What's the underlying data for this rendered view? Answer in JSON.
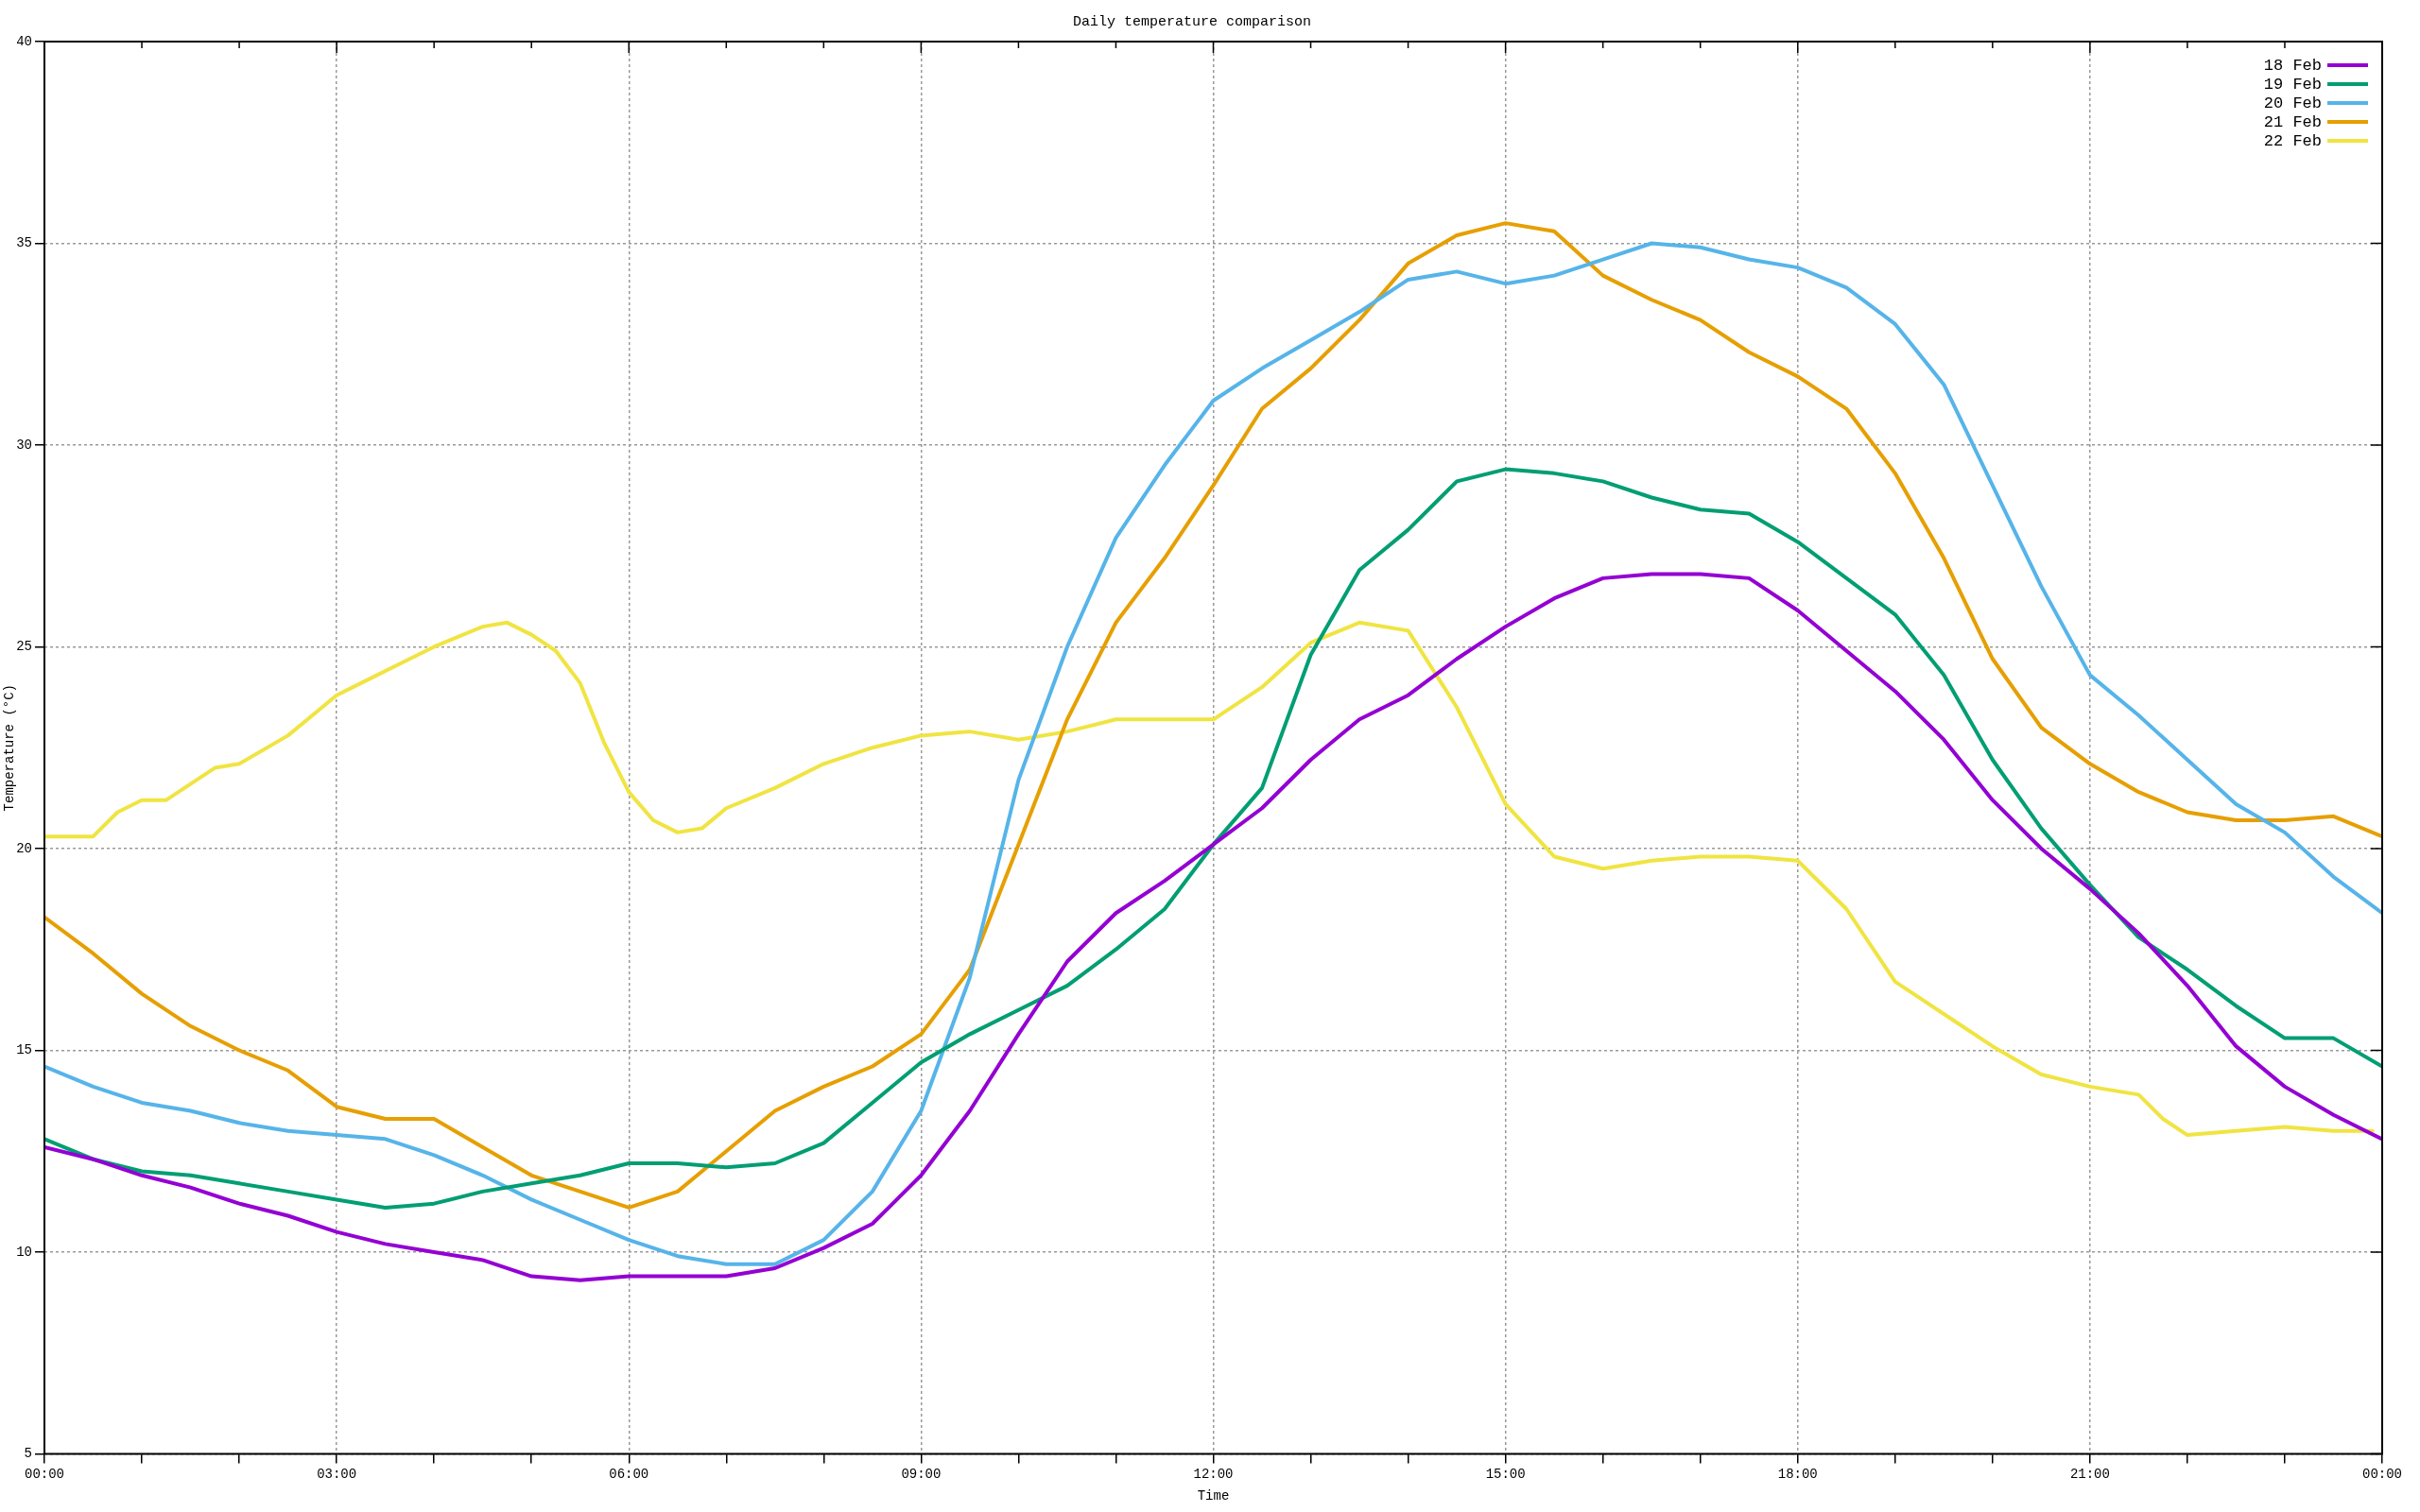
{
  "chart_data": {
    "type": "line",
    "title": "Daily temperature comparison",
    "xlabel": "Time",
    "ylabel": "Temperature (°C)",
    "x": [
      0,
      0.5,
      1,
      1.5,
      2,
      2.5,
      3,
      3.5,
      4,
      4.5,
      5,
      5.5,
      6,
      6.5,
      7,
      7.5,
      8,
      8.5,
      9,
      9.5,
      10,
      10.5,
      11,
      11.5,
      12,
      12.5,
      13,
      13.5,
      14,
      14.5,
      15,
      15.5,
      16,
      16.5,
      17,
      17.5,
      18,
      18.5,
      19,
      19.5,
      20,
      20.5,
      21,
      21.5,
      22,
      22.5,
      23,
      23.5,
      24
    ],
    "series": [
      {
        "name": "18 Feb",
        "color": "#9400d3",
        "values": [
          12.6,
          12.3,
          11.9,
          11.6,
          11.2,
          10.9,
          10.5,
          10.2,
          10.0,
          9.8,
          9.4,
          9.3,
          9.4,
          9.4,
          9.4,
          9.6,
          10.1,
          10.7,
          11.9,
          13.5,
          15.4,
          17.2,
          18.4,
          19.2,
          20.1,
          21.0,
          22.2,
          23.2,
          23.8,
          24.7,
          25.5,
          26.2,
          26.7,
          26.8,
          26.8,
          26.7,
          25.9,
          24.9,
          23.9,
          22.7,
          21.2,
          20.0,
          19.0,
          17.9,
          16.6,
          15.1,
          14.1,
          13.4,
          12.8
        ]
      },
      {
        "name": "19 Feb",
        "color": "#009e73",
        "values": [
          12.8,
          12.3,
          12.0,
          11.9,
          11.7,
          11.5,
          11.3,
          11.1,
          11.2,
          11.5,
          11.7,
          11.9,
          12.2,
          12.2,
          12.1,
          12.2,
          12.7,
          13.7,
          14.7,
          15.4,
          16.0,
          16.6,
          17.5,
          18.5,
          20.1,
          21.5,
          24.8,
          26.9,
          27.9,
          29.1,
          29.4,
          29.3,
          29.1,
          28.7,
          28.4,
          28.3,
          27.6,
          26.7,
          25.8,
          24.3,
          22.2,
          20.5,
          19.1,
          17.8,
          17.0,
          16.1,
          15.3,
          15.3,
          14.6
        ]
      },
      {
        "name": "20 Feb",
        "color": "#56b4e9",
        "values": [
          14.6,
          14.1,
          13.7,
          13.5,
          13.2,
          13.0,
          12.9,
          12.8,
          12.4,
          11.9,
          11.3,
          10.8,
          10.3,
          9.9,
          9.7,
          9.7,
          10.3,
          11.5,
          13.5,
          16.8,
          21.7,
          25.0,
          27.7,
          29.5,
          31.1,
          31.9,
          32.6,
          33.3,
          34.1,
          34.3,
          34.0,
          34.2,
          34.6,
          35.0,
          34.9,
          34.6,
          34.4,
          33.9,
          33.0,
          31.5,
          29.0,
          26.5,
          24.3,
          23.3,
          22.2,
          21.1,
          20.4,
          19.3,
          18.4
        ]
      },
      {
        "name": "21 Feb",
        "color": "#e69f00",
        "values": [
          18.3,
          17.4,
          16.4,
          15.6,
          15.0,
          14.5,
          13.6,
          13.3,
          13.3,
          12.6,
          11.9,
          11.5,
          11.1,
          11.5,
          12.5,
          13.5,
          14.1,
          14.6,
          15.4,
          17.0,
          20.1,
          23.2,
          25.6,
          27.2,
          29.0,
          30.9,
          31.9,
          33.1,
          34.5,
          35.2,
          35.5,
          35.3,
          34.2,
          33.6,
          33.1,
          32.3,
          31.7,
          30.9,
          29.3,
          27.2,
          24.7,
          23.0,
          22.1,
          21.4,
          20.9,
          20.7,
          20.7,
          20.8,
          20.3
        ]
      },
      {
        "name": "22 Feb",
        "color": "#f0e442",
        "x": [
          0,
          0.5,
          0.75,
          1,
          1.25,
          1.75,
          2,
          2.5,
          3,
          3.25,
          3.75,
          4,
          4.5,
          4.75,
          5,
          5.25,
          5.5,
          5.75,
          6,
          6.25,
          6.5,
          6.75,
          7,
          7.5,
          8,
          8.5,
          9,
          9.5,
          10,
          10.5,
          11,
          11.5,
          12,
          12.5,
          13,
          13.5,
          14,
          14.5,
          15,
          15.5,
          16,
          16.5,
          17,
          17.5,
          18,
          18.5,
          19,
          19.5,
          20,
          20.5,
          21,
          21.5,
          21.75,
          22,
          22.5,
          23,
          23.5,
          23.9
        ],
        "values": [
          20.3,
          20.3,
          20.9,
          21.2,
          21.2,
          22.0,
          22.1,
          22.8,
          23.8,
          24.1,
          24.7,
          25.0,
          25.5,
          25.6,
          25.3,
          24.9,
          24.1,
          22.6,
          21.4,
          20.7,
          20.4,
          20.5,
          21.0,
          21.5,
          22.1,
          22.5,
          22.8,
          22.9,
          22.7,
          22.9,
          23.2,
          23.2,
          23.2,
          24.0,
          25.1,
          25.6,
          25.4,
          23.5,
          21.1,
          19.8,
          19.5,
          19.7,
          19.8,
          19.8,
          19.7,
          18.5,
          16.7,
          15.9,
          15.1,
          14.4,
          14.1,
          13.9,
          13.3,
          12.9,
          13.0,
          13.1,
          13.0,
          13.0
        ]
      }
    ],
    "xlim": [
      0,
      24
    ],
    "xticks": [
      {
        "value": 0,
        "label": "00:00"
      },
      {
        "value": 1,
        "label": null
      },
      {
        "value": 2,
        "label": null
      },
      {
        "value": 3,
        "label": "03:00"
      },
      {
        "value": 4,
        "label": null
      },
      {
        "value": 5,
        "label": null
      },
      {
        "value": 6,
        "label": "06:00"
      },
      {
        "value": 7,
        "label": null
      },
      {
        "value": 8,
        "label": null
      },
      {
        "value": 9,
        "label": "09:00"
      },
      {
        "value": 10,
        "label": null
      },
      {
        "value": 11,
        "label": null
      },
      {
        "value": 12,
        "label": "12:00"
      },
      {
        "value": 13,
        "label": null
      },
      {
        "value": 14,
        "label": null
      },
      {
        "value": 15,
        "label": "15:00"
      },
      {
        "value": 16,
        "label": null
      },
      {
        "value": 17,
        "label": null
      },
      {
        "value": 18,
        "label": "18:00"
      },
      {
        "value": 19,
        "label": null
      },
      {
        "value": 20,
        "label": null
      },
      {
        "value": 21,
        "label": "21:00"
      },
      {
        "value": 22,
        "label": null
      },
      {
        "value": 23,
        "label": null
      },
      {
        "value": 24,
        "label": "00:00"
      }
    ],
    "ylim": [
      5,
      40
    ],
    "yticks": [
      5,
      10,
      15,
      20,
      25,
      30,
      35,
      40
    ],
    "grid": true,
    "legend": "top right",
    "marker": "none",
    "line_style": "solid"
  }
}
